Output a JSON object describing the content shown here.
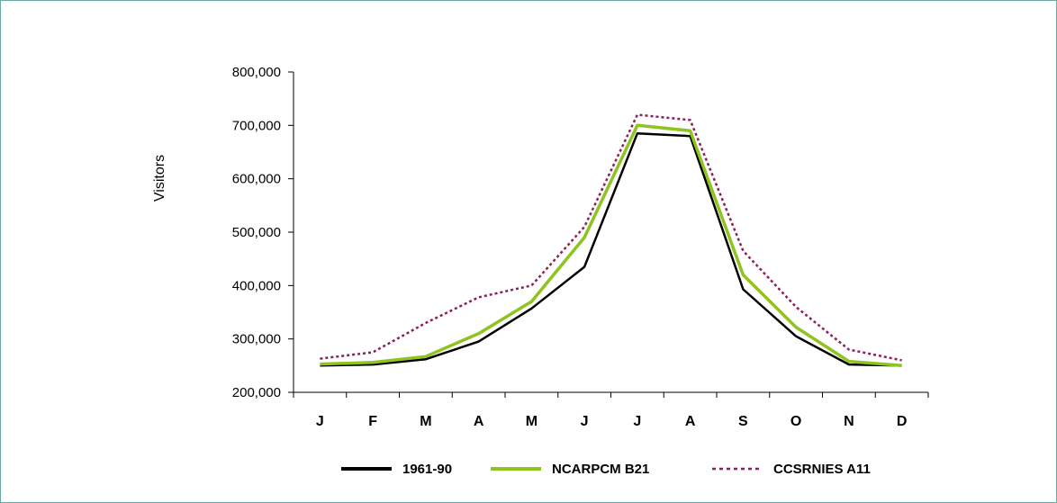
{
  "chart_data": {
    "type": "line",
    "title": "",
    "xlabel": "",
    "ylabel": "Visitors",
    "ylim": [
      200000,
      800000
    ],
    "yticks": [
      200000,
      300000,
      400000,
      500000,
      600000,
      700000,
      800000
    ],
    "ytick_labels": [
      "200,000",
      "300,000",
      "400,000",
      "500,000",
      "600,000",
      "700,000",
      "800,000"
    ],
    "categories": [
      "J",
      "F",
      "M",
      "A",
      "M",
      "J",
      "J",
      "A",
      "S",
      "O",
      "N",
      "D"
    ],
    "grid": false,
    "legend_position": "bottom",
    "series": [
      {
        "name": "1961-90",
        "color": "#000000",
        "style": "solid",
        "values": [
          250000,
          252000,
          262000,
          295000,
          357000,
          435000,
          685000,
          680000,
          393000,
          305000,
          252000,
          250000
        ]
      },
      {
        "name": "NCARPCM B21",
        "color": "#8fc31f",
        "style": "solid",
        "values": [
          253000,
          256000,
          267000,
          310000,
          370000,
          490000,
          700000,
          690000,
          420000,
          322000,
          258000,
          250000
        ]
      },
      {
        "name": "CCSRNIES A11",
        "color": "#8c1d5e",
        "style": "dotted",
        "values": [
          263000,
          275000,
          330000,
          378000,
          400000,
          510000,
          720000,
          710000,
          465000,
          360000,
          280000,
          260000
        ]
      }
    ]
  }
}
